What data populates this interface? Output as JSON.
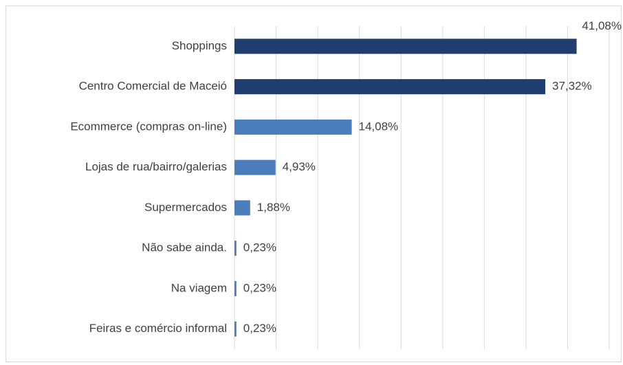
{
  "chart_data": {
    "type": "bar",
    "orientation": "horizontal",
    "categories": [
      "Shoppings",
      "Centro Comercial de Maceió",
      "Ecommerce (compras on-line)",
      "Lojas de rua/bairro/galerias",
      "Supermercados",
      "Não sabe ainda.",
      "Na viagem",
      "Feiras e comércio informal"
    ],
    "values": [
      41.08,
      37.32,
      14.08,
      4.93,
      1.88,
      0.23,
      0.23,
      0.23
    ],
    "value_labels": [
      "41,08%",
      "37,32%",
      "14,08%",
      "4,93%",
      "1,88%",
      "0,23%",
      "0,23%",
      "0,23%"
    ],
    "colors": [
      "#1f3d6e",
      "#1f3d6e",
      "#4a7ebb",
      "#4a7ebb",
      "#4a7ebb",
      "#4a7ebb",
      "#4a7ebb",
      "#4a7ebb"
    ],
    "xlim": [
      0,
      45
    ],
    "xticks": [
      0,
      5,
      10,
      15,
      20,
      25,
      30,
      35,
      40,
      45
    ],
    "grid": true
  }
}
